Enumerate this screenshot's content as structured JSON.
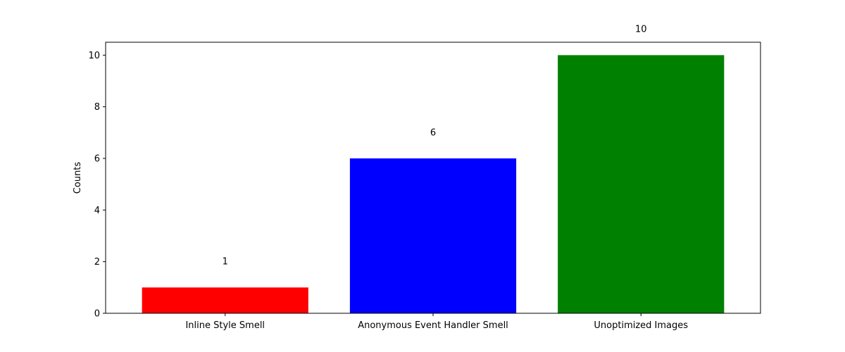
{
  "chart_data": {
    "type": "bar",
    "title": "",
    "xlabel": "",
    "ylabel": "Counts",
    "categories": [
      "Inline Style Smell",
      "Anonymous Event Handler Smell",
      "Unoptimized Images"
    ],
    "values": [
      1,
      6,
      10
    ],
    "bar_colors": [
      "#ff0000",
      "#0000ff",
      "#008000"
    ],
    "value_labels": [
      "1",
      "6",
      "10"
    ],
    "ylim": [
      0,
      10.5
    ],
    "yticks": [
      0,
      2,
      4,
      6,
      8,
      10
    ],
    "grid": false,
    "legend": "none"
  }
}
